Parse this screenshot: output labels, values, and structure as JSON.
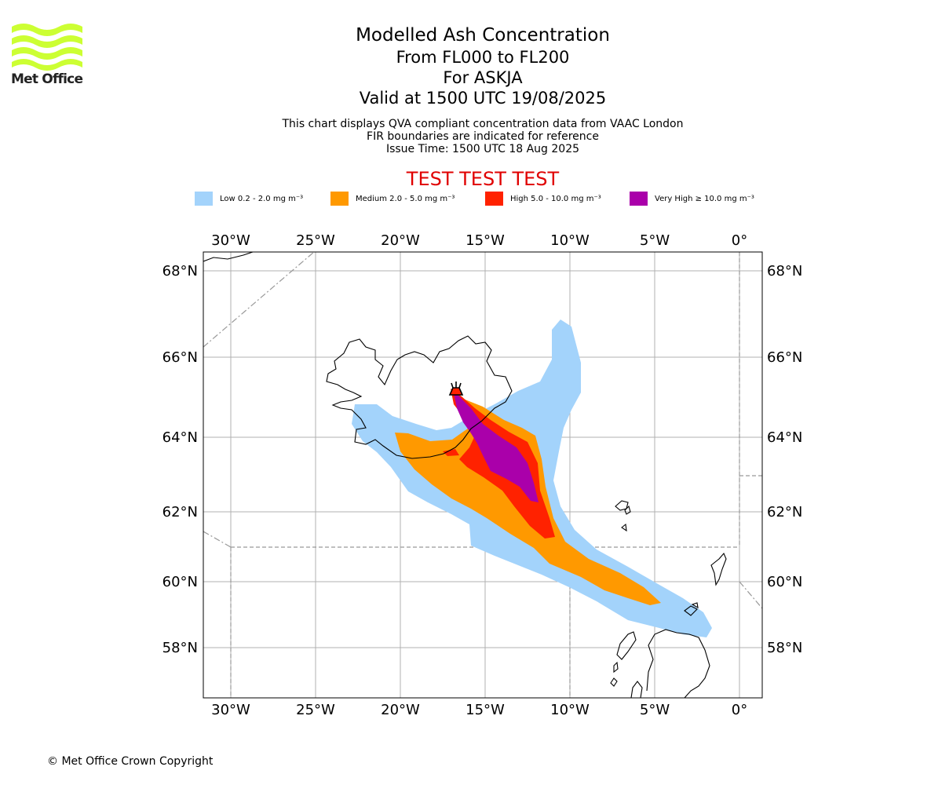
{
  "branding": {
    "logo_icon": "met-office-waves-icon",
    "logo_text": "Met Office",
    "logo_color": "#ccff33",
    "copyright": "© Met Office Crown Copyright"
  },
  "header": {
    "title": "Modelled Ash Concentration",
    "levels": "From FL000 to FL200",
    "volcano": "For ASKJA",
    "valid": "Valid at 1500 UTC 19/08/2025",
    "note_1": "This chart displays QVA compliant concentration data from VAAC London",
    "note_2": "FIR boundaries are indicated for reference",
    "issue_time": "Issue Time: 1500 UTC 18 Aug 2025",
    "test_banner": "TEST TEST TEST",
    "test_color": "#e00000"
  },
  "legend": [
    {
      "name": "Low",
      "label": "Low 0.2 - 2.0 mg m⁻³",
      "color": "#a3d3fb"
    },
    {
      "name": "Medium",
      "label": "Medium 2.0 - 5.0 mg m⁻³",
      "color": "#ff9900"
    },
    {
      "name": "High",
      "label": "High 5.0 - 10.0 mg m⁻³",
      "color": "#ff2200"
    },
    {
      "name": "Very High",
      "label": "Very High ≥ 10.0 mg m⁻³",
      "color": "#aa00aa"
    }
  ],
  "map": {
    "longitude_ticks": [
      "30°W",
      "25°W",
      "20°W",
      "15°W",
      "10°W",
      "5°W",
      "0°"
    ],
    "latitude_ticks": [
      "68°N",
      "66°N",
      "64°N",
      "62°N",
      "60°N",
      "58°N"
    ],
    "gridlines": true,
    "fir_boundaries": true,
    "volcano_marker_icon": "volcano-icon"
  }
}
